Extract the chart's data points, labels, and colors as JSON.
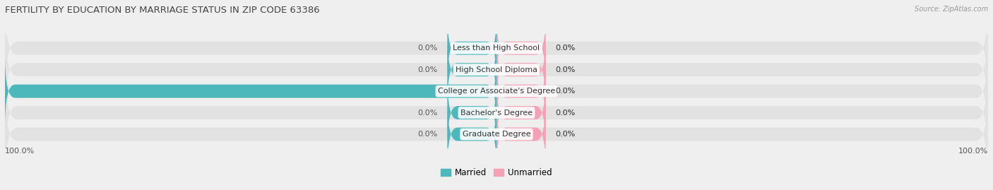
{
  "title": "FERTILITY BY EDUCATION BY MARRIAGE STATUS IN ZIP CODE 63386",
  "source": "Source: ZipAtlas.com",
  "categories": [
    "Less than High School",
    "High School Diploma",
    "College or Associate's Degree",
    "Bachelor's Degree",
    "Graduate Degree"
  ],
  "married_values": [
    0.0,
    0.0,
    100.0,
    0.0,
    0.0
  ],
  "unmarried_values": [
    0.0,
    0.0,
    0.0,
    0.0,
    0.0
  ],
  "married_color": "#4db8bc",
  "unmarried_color": "#f4a0b5",
  "married_label": "Married",
  "unmarried_label": "Unmarried",
  "bar_height": 0.62,
  "bg_color": "#efefef",
  "bar_bg_color": "#e2e2e2",
  "title_fontsize": 9.5,
  "tick_fontsize": 8.0,
  "label_fontsize": 8.0,
  "source_fontsize": 7.0,
  "legend_fontsize": 8.5,
  "small_bar_width": 10,
  "axis_label_left": "100.0%",
  "axis_label_right": "100.0%"
}
